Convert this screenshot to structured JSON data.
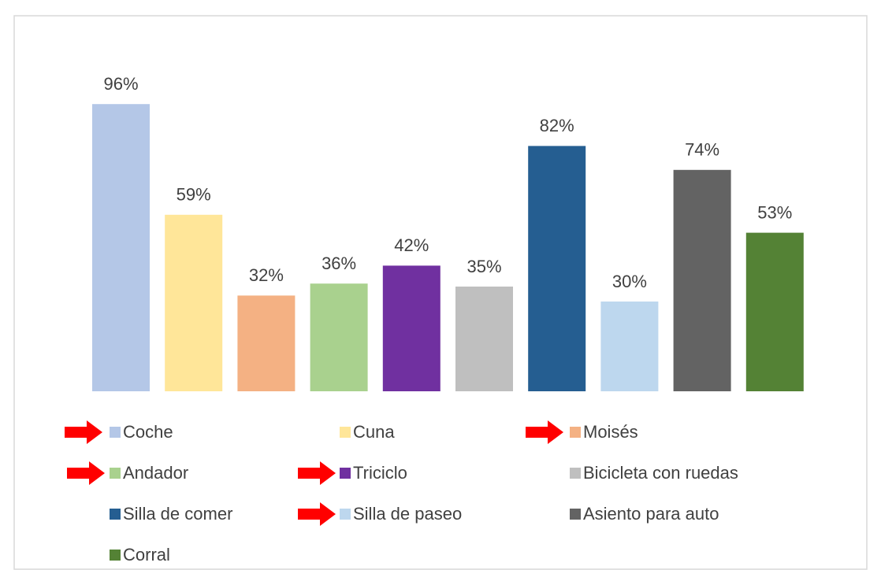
{
  "chart_data": {
    "type": "bar",
    "categories": [
      "Coche",
      "Cuna",
      "Moisés",
      "Andador",
      "Triciclo",
      "Bicicleta con ruedas",
      "Silla de comer",
      "Silla de paseo",
      "Asiento para auto",
      "Corral"
    ],
    "values": [
      96,
      59,
      32,
      36,
      42,
      35,
      82,
      30,
      74,
      53
    ],
    "value_labels": [
      "96%",
      "59%",
      "32%",
      "36%",
      "42%",
      "35%",
      "82%",
      "30%",
      "74%",
      "53%"
    ],
    "colors": [
      "#b4c7e7",
      "#ffe699",
      "#f4b183",
      "#a9d18e",
      "#7030a0",
      "#bfbfbf",
      "#255e91",
      "#bdd7ee",
      "#636363",
      "#548235"
    ]
  }
}
